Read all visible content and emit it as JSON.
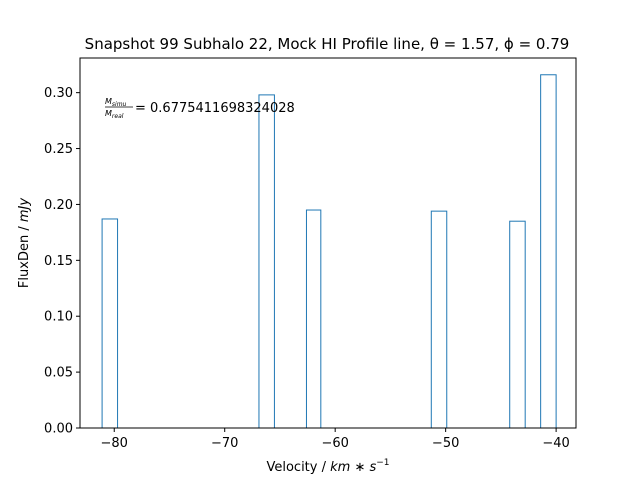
{
  "chart_data": {
    "type": "bar",
    "title": "Snapshot 99 Subhalo 22, Mock HI Profile line, θ = 1.57, ϕ = 0.79",
    "xlabel_prefix": "Velocity / ",
    "xlabel_unit": "km ∗ s",
    "xlabel_exp": "−1",
    "ylabel_prefix": "FluxDen / ",
    "ylabel_unit": "mJy",
    "annotation": {
      "numerator": "M",
      "numerator_sub": "simu",
      "denominator": "M",
      "denominator_sub": "real",
      "value_text": "= 0.6775411698324028"
    },
    "xlim": [
      -83.1,
      -38.2
    ],
    "ylim": [
      0,
      0.331
    ],
    "xticks": [
      -80,
      -70,
      -60,
      -50,
      -40
    ],
    "xtick_labels": [
      "−80",
      "−70",
      "−60",
      "−50",
      "−40"
    ],
    "yticks": [
      0.0,
      0.05,
      0.1,
      0.15,
      0.2,
      0.25,
      0.3
    ],
    "ytick_labels": [
      "0.00",
      "0.05",
      "0.10",
      "0.15",
      "0.20",
      "0.25",
      "0.30"
    ],
    "bar_color": "#1f77b4",
    "bars": [
      {
        "x0": -81.1,
        "x1": -79.7,
        "value": 0.187
      },
      {
        "x0": -66.9,
        "x1": -65.5,
        "value": 0.298
      },
      {
        "x0": -62.6,
        "x1": -61.3,
        "value": 0.195
      },
      {
        "x0": -51.3,
        "x1": -49.9,
        "value": 0.194
      },
      {
        "x0": -44.2,
        "x1": -42.8,
        "value": 0.185
      },
      {
        "x0": -41.4,
        "x1": -40.0,
        "value": 0.316
      }
    ]
  }
}
